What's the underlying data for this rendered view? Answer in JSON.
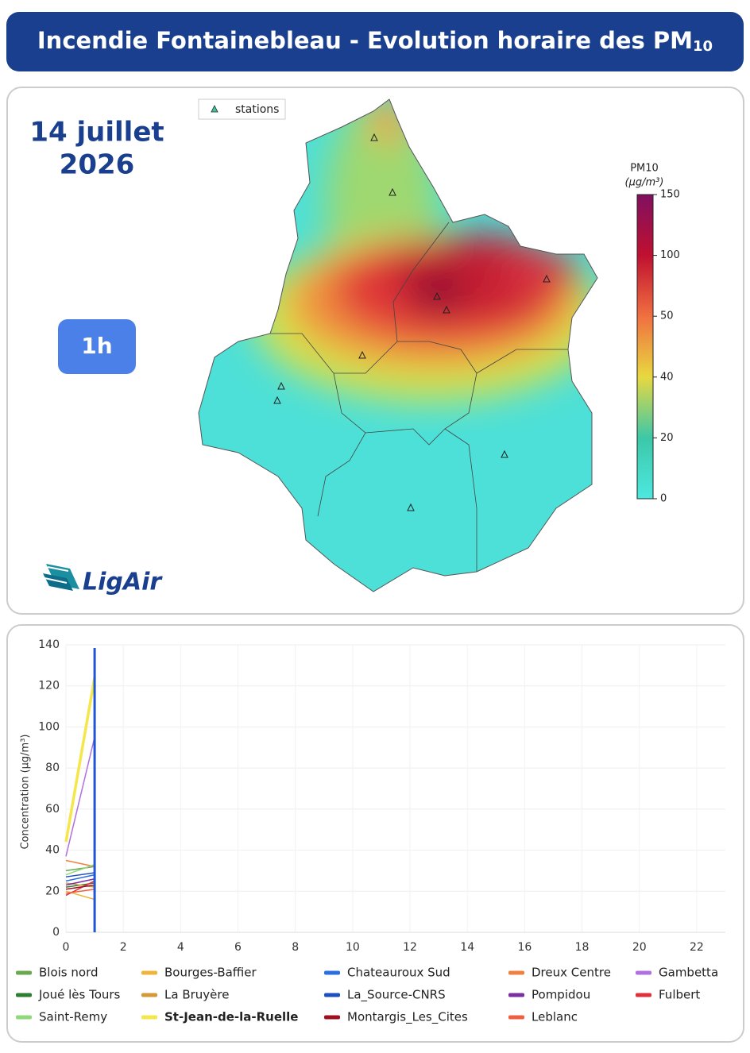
{
  "header": {
    "title": "Incendie Fontainebleau - Evolution horaire des PM",
    "title_subscript": "10"
  },
  "map_panel": {
    "date": [
      "14 juillet",
      "2026"
    ],
    "hour": "1h",
    "legend": "stations",
    "logo": "LigAir",
    "colorbar": {
      "title": "PM10",
      "unit": "(µg/m³)",
      "ticks": [
        0,
        20,
        40,
        50,
        100,
        150
      ],
      "colors": [
        "#4de8e0",
        "#3cc8a8",
        "#e8d840",
        "#f07040",
        "#c01030",
        "#801060"
      ]
    }
  },
  "chart_data": {
    "type": "line",
    "y_label": "Concentration (µg/m³)",
    "x": [
      0,
      1
    ],
    "xlim": [
      0,
      23
    ],
    "xticks": [
      0,
      2,
      4,
      6,
      8,
      10,
      12,
      14,
      16,
      18,
      20,
      22
    ],
    "ylim": [
      0,
      140
    ],
    "yticks": [
      0,
      20,
      40,
      60,
      80,
      100,
      120,
      140
    ],
    "grid": true,
    "current_x": 1,
    "current_color": "#1f55d8",
    "series": [
      {
        "name": "Blois nord",
        "color": "#6aa84f",
        "values": [
          30,
          32
        ]
      },
      {
        "name": "Bourges-Baffier",
        "color": "#eeb43c",
        "values": [
          20,
          16
        ]
      },
      {
        "name": "Chateauroux Sud",
        "color": "#2a6ee0",
        "values": [
          25,
          28
        ]
      },
      {
        "name": "Dreux Centre",
        "color": "#f08040",
        "values": [
          35,
          32
        ]
      },
      {
        "name": "Gambetta",
        "color": "#b070e0",
        "values": [
          37,
          95
        ]
      },
      {
        "name": "Joué lès Tours",
        "color": "#2e7d32",
        "values": [
          22,
          24
        ]
      },
      {
        "name": "La Bruyère",
        "color": "#d4993a",
        "values": [
          24,
          22
        ]
      },
      {
        "name": "La_Source-CNRS",
        "color": "#1f4fbf",
        "values": [
          27,
          29
        ]
      },
      {
        "name": "Pompidou",
        "color": "#7b2fa0",
        "values": [
          23,
          26
        ]
      },
      {
        "name": "Fulbert",
        "color": "#e0303a",
        "values": [
          18,
          25
        ]
      },
      {
        "name": "Saint-Remy",
        "color": "#8fd97a",
        "values": [
          28,
          33
        ]
      },
      {
        "name": "St-Jean-de-la-Ruelle",
        "color": "#f5e64a",
        "values": [
          44,
          124
        ],
        "highlight": true
      },
      {
        "name": "Montargis_Les_Cites",
        "color": "#a01020",
        "values": [
          21,
          23
        ]
      },
      {
        "name": "Leblanc",
        "color": "#f06040",
        "values": [
          19,
          21
        ]
      }
    ]
  }
}
